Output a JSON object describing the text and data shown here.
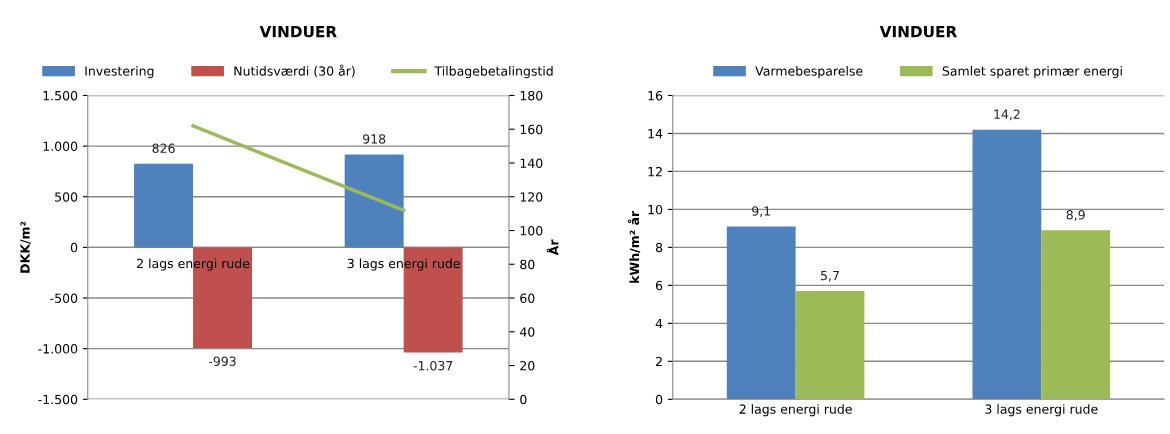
{
  "chart_data": [
    {
      "type": "bar",
      "title": "VINDUER",
      "ylabel": "DKK/m²",
      "y2label": "År",
      "categories": [
        "2 lags energi rude",
        "3 lags energi rude"
      ],
      "series": [
        {
          "name": "Investering",
          "color": "#4f81bd",
          "values": [
            826,
            918
          ],
          "value_labels": [
            "826",
            "918"
          ]
        },
        {
          "name": "Nutidsværdi (30 år)",
          "color": "#c0504d",
          "values": [
            -993,
            -1037
          ],
          "value_labels": [
            "-993",
            "-1.037"
          ]
        },
        {
          "name": "Tilbagebetalingstid",
          "color": "#9bbb59",
          "type": "line",
          "axis": "y2",
          "values": [
            162,
            112
          ]
        }
      ],
      "ylim": [
        -1500,
        1500
      ],
      "yticks": [
        {
          "value": -1500,
          "label": "-1.500"
        },
        {
          "value": -1000,
          "label": "-1.000"
        },
        -500,
        0,
        500,
        {
          "value": 1000,
          "label": "1.000"
        },
        {
          "value": 1500,
          "label": "1.500"
        }
      ],
      "y2lim": [
        0,
        180
      ],
      "y2ticks": [
        0,
        20,
        40,
        60,
        80,
        100,
        120,
        140,
        160,
        180
      ],
      "grid": "y",
      "legend": "top",
      "marker": "none",
      "line_style": "solid"
    },
    {
      "type": "bar",
      "title": "VINDUER",
      "ylabel": "kWh/m² år",
      "categories": [
        "2 lags energi rude",
        "3 lags energi rude"
      ],
      "series": [
        {
          "name": "Varmebesparelse",
          "color": "#4f81bd",
          "values": [
            9.1,
            14.2
          ],
          "value_labels": [
            "9,1",
            "14,2"
          ]
        },
        {
          "name": "Samlet sparet primær energi",
          "color": "#9bbb59",
          "values": [
            5.7,
            8.9
          ],
          "value_labels": [
            "5,7",
            "8,9"
          ]
        }
      ],
      "ylim": [
        0,
        16
      ],
      "yticks": [
        0,
        2,
        4,
        6,
        8,
        10,
        12,
        14,
        16
      ],
      "grid": "y",
      "legend": "top"
    }
  ]
}
